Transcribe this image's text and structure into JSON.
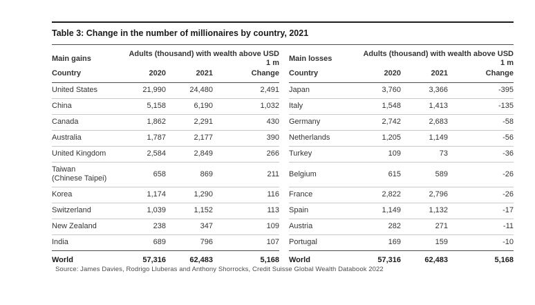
{
  "title": "Table 3: Change in the number of millionaires by country, 2021",
  "source": "Source: James Davies, Rodrigo Lluberas and Anthony Shorrocks, Credit Suisse Global Wealth Databook 2022",
  "colors": {
    "rule_dark": "#1c1c1c",
    "rule_medium": "#4a4a4a",
    "rule_light": "#c9c9c9",
    "text": "#333333",
    "text_dark": "#1a1a1a",
    "background": "#ffffff"
  },
  "gains": {
    "group_label": "Main gains",
    "span_header": "Adults (thousand) with wealth above USD 1 m",
    "columns": [
      "Country",
      "2020",
      "2021",
      "Change"
    ],
    "rows": [
      {
        "country": "United States",
        "y2020": "21,990",
        "y2021": "24,480",
        "change": "2,491"
      },
      {
        "country": "China",
        "y2020": "5,158",
        "y2021": "6,190",
        "change": "1,032"
      },
      {
        "country": "Canada",
        "y2020": "1,862",
        "y2021": "2,291",
        "change": "430"
      },
      {
        "country": "Australia",
        "y2020": "1,787",
        "y2021": "2,177",
        "change": "390"
      },
      {
        "country": "United Kingdom",
        "y2020": "2,584",
        "y2021": "2,849",
        "change": "266"
      },
      {
        "country": "Taiwan\n(Chinese Taipei)",
        "y2020": "658",
        "y2021": "869",
        "change": "211"
      },
      {
        "country": "Korea",
        "y2020": "1,174",
        "y2021": "1,290",
        "change": "116"
      },
      {
        "country": "Switzerland",
        "y2020": "1,039",
        "y2021": "1,152",
        "change": "113"
      },
      {
        "country": "New Zealand",
        "y2020": "238",
        "y2021": "347",
        "change": "109"
      },
      {
        "country": "India",
        "y2020": "689",
        "y2021": "796",
        "change": "107"
      }
    ],
    "total": {
      "country": "World",
      "y2020": "57,316",
      "y2021": "62,483",
      "change": "5,168"
    }
  },
  "losses": {
    "group_label": "Main losses",
    "span_header": "Adults (thousand) with wealth above USD 1 m",
    "columns": [
      "Country",
      "2020",
      "2021",
      "Change"
    ],
    "rows": [
      {
        "country": "Japan",
        "y2020": "3,760",
        "y2021": "3,366",
        "change": "-395"
      },
      {
        "country": "Italy",
        "y2020": "1,548",
        "y2021": "1,413",
        "change": "-135"
      },
      {
        "country": "Germany",
        "y2020": "2,742",
        "y2021": "2,683",
        "change": "-58"
      },
      {
        "country": "Netherlands",
        "y2020": "1,205",
        "y2021": "1,149",
        "change": "-56"
      },
      {
        "country": "Turkey",
        "y2020": "109",
        "y2021": "73",
        "change": "-36"
      },
      {
        "country": "Belgium",
        "y2020": "615",
        "y2021": "589",
        "change": "-26"
      },
      {
        "country": "France",
        "y2020": "2,822",
        "y2021": "2,796",
        "change": "-26"
      },
      {
        "country": "Spain",
        "y2020": "1,149",
        "y2021": "1,132",
        "change": "-17"
      },
      {
        "country": "Austria",
        "y2020": "282",
        "y2021": "271",
        "change": "-11"
      },
      {
        "country": "Portugal",
        "y2020": "169",
        "y2021": "159",
        "change": "-10"
      }
    ],
    "total": {
      "country": "World",
      "y2020": "57,316",
      "y2021": "62,483",
      "change": "5,168"
    }
  }
}
